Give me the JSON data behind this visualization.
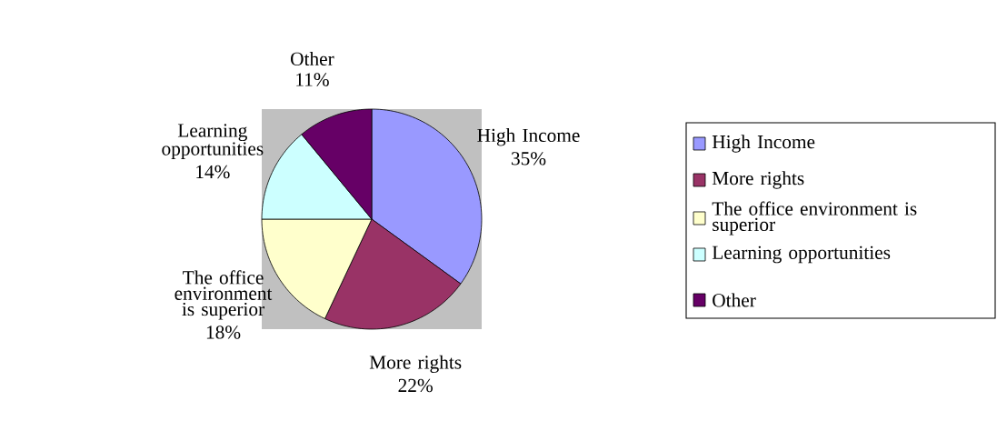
{
  "chart_data": {
    "type": "pie",
    "categories": [
      "High Income",
      "More  rights",
      "The office environment is superior",
      "Learning opportunities",
      "Other"
    ],
    "values": [
      35,
      22,
      18,
      14,
      11
    ],
    "value_labels": [
      "35%",
      "22%",
      "18%",
      "14%",
      "11%"
    ],
    "colors": [
      "#9999ff",
      "#993366",
      "#ffffcc",
      "#ccffff",
      "#660066"
    ],
    "legend": "right"
  }
}
